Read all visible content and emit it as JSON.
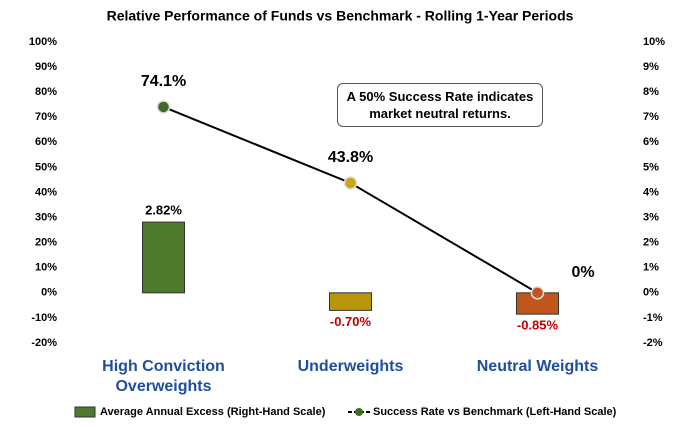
{
  "chart_data": {
    "type": "combo",
    "title": "Relative Performance of Funds vs Benchmark - Rolling 1-Year Periods",
    "categories": [
      "High Conviction Overweights",
      "Underweights",
      "Neutral Weights"
    ],
    "series": [
      {
        "name": "Average Annual Excess (Right-Hand Scale)",
        "type": "bar",
        "axis": "y2",
        "colors": [
          "#4e7a2e",
          "#b8960c",
          "#c0561c"
        ],
        "values": [
          2.82,
          -0.7,
          -0.85
        ],
        "value_labels": [
          "2.82%",
          "-0.70%",
          "-0.85%"
        ]
      },
      {
        "name": "Success Rate vs Benchmark (Left-Hand Scale)",
        "type": "line",
        "axis": "y",
        "color": "#000000",
        "marker_colors": [
          "#3f6b25",
          "#c9a814",
          "#c0561c"
        ],
        "values": [
          74.1,
          43.8,
          0
        ],
        "value_labels": [
          "74.1%",
          "43.8%",
          "0%"
        ]
      }
    ],
    "ylim": [
      -20,
      100
    ],
    "yticks": [
      {
        "value": -20,
        "label": "-20%"
      },
      {
        "value": -10,
        "label": "-10%"
      },
      {
        "value": 0,
        "label": "0%"
      },
      {
        "value": 10,
        "label": "10%"
      },
      {
        "value": 20,
        "label": "20%"
      },
      {
        "value": 30,
        "label": "30%"
      },
      {
        "value": 40,
        "label": "40%"
      },
      {
        "value": 50,
        "label": "50%"
      },
      {
        "value": 60,
        "label": "60%"
      },
      {
        "value": 70,
        "label": "70%"
      },
      {
        "value": 80,
        "label": "80%"
      },
      {
        "value": 90,
        "label": "90%"
      },
      {
        "value": 100,
        "label": "100%"
      }
    ],
    "y2lim": [
      -2,
      10
    ],
    "y2ticks": [
      {
        "value": -2,
        "label": "-2%"
      },
      {
        "value": -1,
        "label": "-1%"
      },
      {
        "value": 0,
        "label": "0%"
      },
      {
        "value": 1,
        "label": "1%"
      },
      {
        "value": 2,
        "label": "2%"
      },
      {
        "value": 3,
        "label": "3%"
      },
      {
        "value": 4,
        "label": "4%"
      },
      {
        "value": 5,
        "label": "5%"
      },
      {
        "value": 6,
        "label": "6%"
      },
      {
        "value": 7,
        "label": "7%"
      },
      {
        "value": 8,
        "label": "8%"
      },
      {
        "value": 9,
        "label": "9%"
      },
      {
        "value": 10,
        "label": "10%"
      }
    ],
    "annotation": "A 50% Success Rate indicates market neutral returns."
  }
}
